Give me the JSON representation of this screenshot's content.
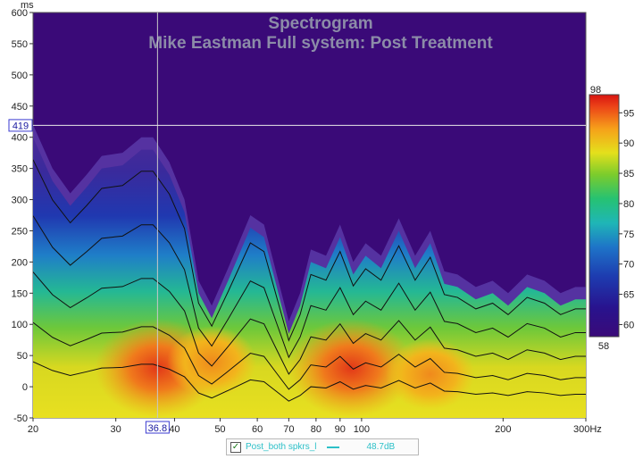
{
  "chart_data": {
    "type": "heatmap",
    "title": "Spectrogram",
    "subtitle": "Mike Eastman Full system: Post Treatment",
    "ylabel": "ms",
    "xunit": "Hz",
    "xscale": "log",
    "xlim": [
      20,
      300
    ],
    "ylim": [
      -50,
      600
    ],
    "xticks": [
      20,
      30,
      40,
      50,
      60,
      70,
      80,
      90,
      100,
      200,
      300
    ],
    "xtick_labels": [
      "20",
      "30",
      "40",
      "50",
      "60",
      "70",
      "80",
      "90",
      "100",
      "200",
      "300Hz"
    ],
    "yticks": [
      -50,
      0,
      50,
      100,
      150,
      200,
      250,
      300,
      350,
      400,
      450,
      500,
      550,
      600
    ],
    "colorbar": {
      "min": 58,
      "max": 98,
      "min_label": "58",
      "max_label": "98",
      "ticks": [
        60,
        65,
        70,
        75,
        80,
        85,
        90,
        95
      ]
    },
    "cursor": {
      "x_label": "36.8",
      "y_label": "419",
      "x": 36.8,
      "y": 419
    },
    "background_color": "#3a0a78",
    "plot_floor_color": "#2a0a6e",
    "legend": {
      "label": "Post_both spkrs_l",
      "level": "48.7dB",
      "checked": true,
      "color": "#2cc0c8"
    },
    "decay_time_ms": [
      [
        20,
        400
      ],
      [
        22,
        330
      ],
      [
        24,
        290
      ],
      [
        26,
        320
      ],
      [
        28,
        350
      ],
      [
        31,
        355
      ],
      [
        34,
        380
      ],
      [
        36,
        380
      ],
      [
        39,
        340
      ],
      [
        42,
        280
      ],
      [
        45,
        150
      ],
      [
        48,
        110
      ],
      [
        52,
        170
      ],
      [
        58,
        255
      ],
      [
        62,
        240
      ],
      [
        66,
        160
      ],
      [
        70,
        85
      ],
      [
        74,
        130
      ],
      [
        78,
        200
      ],
      [
        84,
        190
      ],
      [
        90,
        240
      ],
      [
        96,
        180
      ],
      [
        102,
        210
      ],
      [
        110,
        190
      ],
      [
        120,
        250
      ],
      [
        130,
        190
      ],
      [
        140,
        230
      ],
      [
        150,
        165
      ],
      [
        160,
        160
      ],
      [
        175,
        140
      ],
      [
        190,
        150
      ],
      [
        205,
        130
      ],
      [
        225,
        160
      ],
      [
        245,
        150
      ],
      [
        265,
        130
      ],
      [
        285,
        140
      ],
      [
        300,
        140
      ]
    ],
    "hot_regions": [
      {
        "x": 36.8,
        "y": 30,
        "level": 94
      },
      {
        "x": 95,
        "y": 30,
        "level": 96
      },
      {
        "x": 48,
        "y": 40,
        "level": 88
      },
      {
        "x": 140,
        "y": 20,
        "level": 85
      }
    ]
  }
}
